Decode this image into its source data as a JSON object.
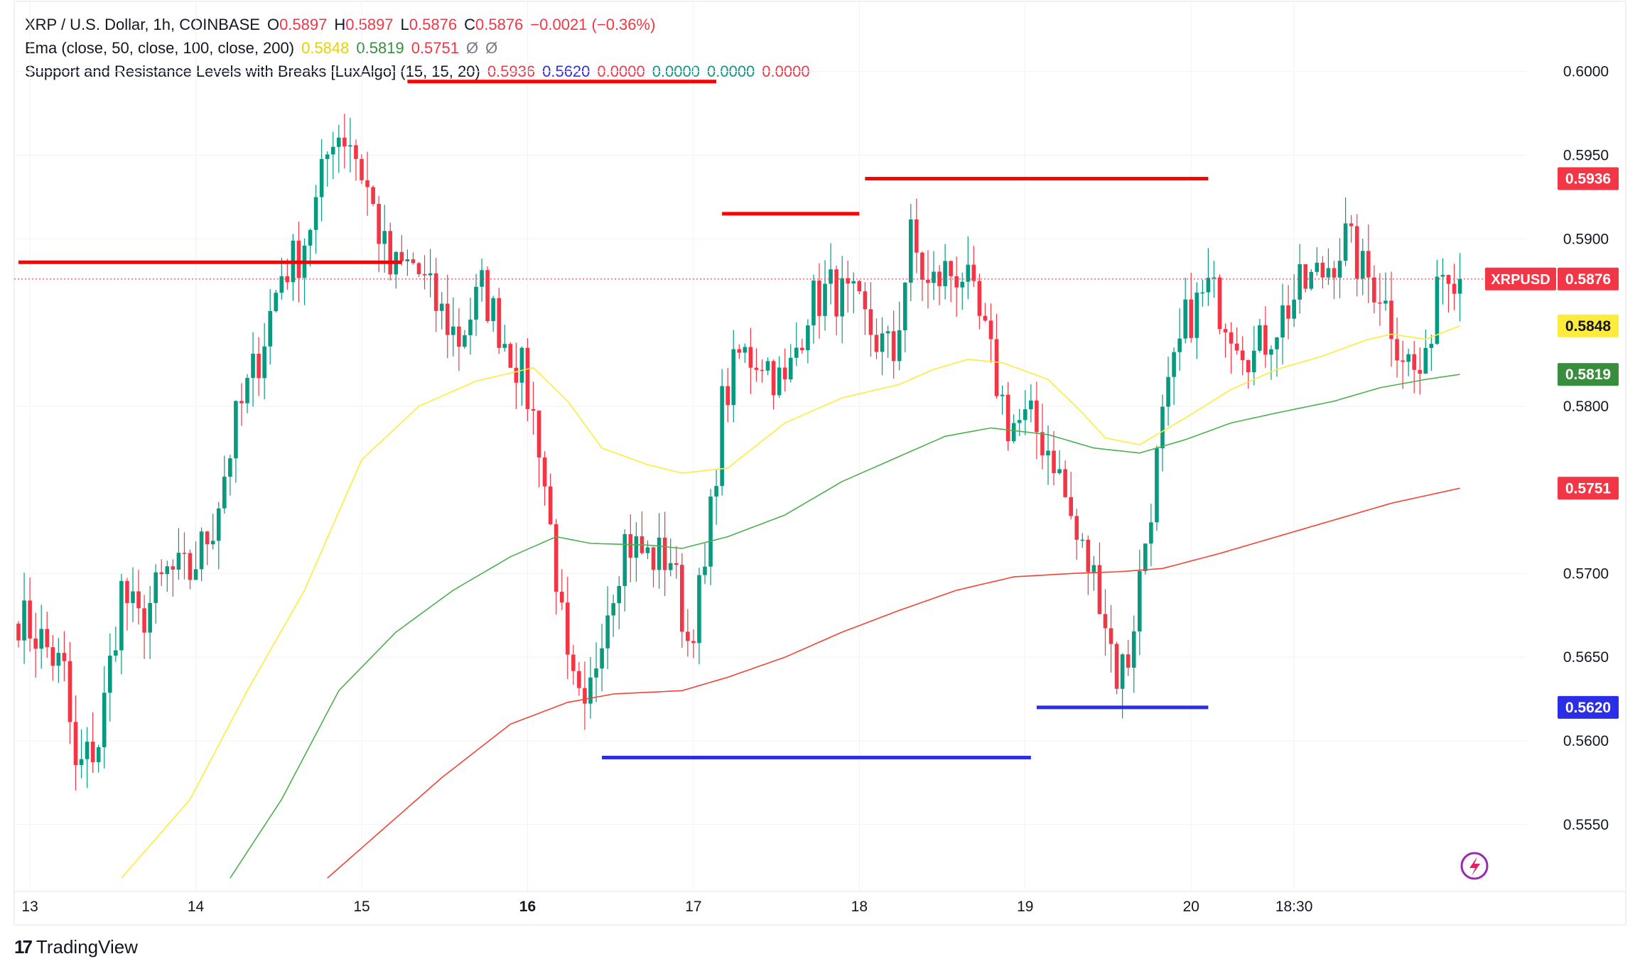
{
  "legend": {
    "symbol": "XRP / U.S. Dollar, 1h, COINBASE",
    "o_label": "O",
    "o_value": "0.5897",
    "h_label": "H",
    "h_value": "0.5897",
    "l_label": "L",
    "l_value": "0.5876",
    "c_label": "C",
    "c_value": "0.5876",
    "change": "−0.0021 (−0.36%)",
    "ema_title": "Ema (close, 50, close, 100, close, 200)",
    "ema_values": [
      "0.5848",
      "0.5819",
      "0.5751"
    ],
    "ema_na": [
      "Ø",
      "Ø"
    ],
    "sr_title": "Support and Resistance Levels with Breaks [LuxAlgo] (15, 15, 20)",
    "sr_values": [
      "0.5936",
      "0.5620",
      "0.0000",
      "0.0000",
      "0.0000",
      "0.0000"
    ]
  },
  "colors": {
    "up": "#089981",
    "down": "#f23645",
    "ema50": "#ffeb3b",
    "ema100": "#4caf50",
    "ema200": "#f44336",
    "resistance": "#ff0000",
    "support": "#2a2ee6",
    "na": "#787b86"
  },
  "brand": {
    "name": "TradingView",
    "logo": "17"
  },
  "chart_data": {
    "type": "candlestick",
    "symbol": "XRPUSD",
    "timeframe": "1h",
    "x_tick_labels": [
      "13",
      "14",
      "15",
      "16",
      "17",
      "18",
      "19",
      "20",
      "18:30"
    ],
    "y_tick_labels": [
      "0.6000",
      "0.5950",
      "0.5900",
      "0.5800",
      "0.5700",
      "0.5650",
      "0.5600",
      "0.5550"
    ],
    "ylim": [
      0.551,
      0.603
    ],
    "last_price": 0.5876,
    "price_labels": [
      {
        "text": "0.5936",
        "value": 0.5936,
        "color": "#f23645",
        "tag": ""
      },
      {
        "text": "0.5876",
        "value": 0.5876,
        "color": "#f23645",
        "tag": "XRPUSD"
      },
      {
        "text": "0.5848",
        "value": 0.5848,
        "color": "#ffeb3b",
        "tag": ""
      },
      {
        "text": "0.5819",
        "value": 0.5819,
        "color": "#388e3c",
        "tag": ""
      },
      {
        "text": "0.5751",
        "value": 0.5751,
        "color": "#f23645",
        "tag": ""
      },
      {
        "text": "0.5620",
        "value": 0.562,
        "color": "#2a2ee6",
        "tag": ""
      }
    ],
    "anchors": [
      [
        0,
        0.5675
      ],
      [
        4,
        0.566
      ],
      [
        8,
        0.564
      ],
      [
        10,
        0.558
      ],
      [
        14,
        0.56
      ],
      [
        18,
        0.569
      ],
      [
        21,
        0.567
      ],
      [
        26,
        0.57
      ],
      [
        30,
        0.57
      ],
      [
        34,
        0.573
      ],
      [
        38,
        0.579
      ],
      [
        42,
        0.583
      ],
      [
        46,
        0.588
      ],
      [
        49,
        0.589
      ],
      [
        52,
        0.592
      ],
      [
        55,
        0.5965
      ],
      [
        58,
        0.596
      ],
      [
        61,
        0.593
      ],
      [
        65,
        0.588
      ],
      [
        69,
        0.5885
      ],
      [
        73,
        0.586
      ],
      [
        77,
        0.584
      ],
      [
        81,
        0.587
      ],
      [
        85,
        0.584
      ],
      [
        88,
        0.582
      ],
      [
        91,
        0.578
      ],
      [
        94,
        0.57
      ],
      [
        96,
        0.564
      ],
      [
        99,
        0.561
      ],
      [
        102,
        0.567
      ],
      [
        106,
        0.572
      ],
      [
        110,
        0.571
      ],
      [
        114,
        0.571
      ],
      [
        117,
        0.566
      ],
      [
        120,
        0.57
      ],
      [
        123,
        0.58
      ],
      [
        126,
        0.583
      ],
      [
        130,
        0.583
      ],
      [
        134,
        0.581
      ],
      [
        138,
        0.586
      ],
      [
        142,
        0.587
      ],
      [
        146,
        0.586
      ],
      [
        150,
        0.584
      ],
      [
        153,
        0.583
      ],
      [
        156,
        0.59
      ],
      [
        159,
        0.587
      ],
      [
        162,
        0.588
      ],
      [
        165,
        0.588
      ],
      [
        169,
        0.584
      ],
      [
        173,
        0.579
      ],
      [
        177,
        0.579
      ],
      [
        181,
        0.577
      ],
      [
        185,
        0.572
      ],
      [
        189,
        0.569
      ],
      [
        192,
        0.564
      ],
      [
        194,
        0.565
      ],
      [
        197,
        0.572
      ],
      [
        200,
        0.579
      ],
      [
        204,
        0.585
      ],
      [
        208,
        0.587
      ],
      [
        212,
        0.585
      ],
      [
        216,
        0.583
      ],
      [
        220,
        0.585
      ],
      [
        224,
        0.587
      ],
      [
        228,
        0.588
      ],
      [
        232,
        0.59
      ],
      [
        235,
        0.588
      ],
      [
        238,
        0.587
      ],
      [
        241,
        0.584
      ],
      [
        244,
        0.582
      ],
      [
        246,
        0.582
      ],
      [
        248,
        0.588
      ],
      [
        250,
        0.5888
      ],
      [
        252,
        0.5876
      ]
    ],
    "x_ticks_index": [
      2,
      31,
      60,
      89,
      118,
      147,
      176,
      205,
      223
    ],
    "ema_series": [
      {
        "name": "EMA 50",
        "color": "#ffeb3b",
        "start": 18,
        "values": [
          [
            18,
            0.5518
          ],
          [
            30,
            0.5565
          ],
          [
            40,
            0.563
          ],
          [
            50,
            0.569
          ],
          [
            60,
            0.5768
          ],
          [
            70,
            0.58
          ],
          [
            80,
            0.5815
          ],
          [
            90,
            0.5823
          ],
          [
            96,
            0.5803
          ],
          [
            102,
            0.5775
          ],
          [
            110,
            0.5765
          ],
          [
            116,
            0.576
          ],
          [
            124,
            0.5763
          ],
          [
            134,
            0.579
          ],
          [
            144,
            0.5805
          ],
          [
            154,
            0.5813
          ],
          [
            160,
            0.5822
          ],
          [
            166,
            0.5828
          ],
          [
            172,
            0.5826
          ],
          [
            180,
            0.5816
          ],
          [
            186,
            0.5796
          ],
          [
            190,
            0.5781
          ],
          [
            196,
            0.5777
          ],
          [
            204,
            0.5793
          ],
          [
            212,
            0.581
          ],
          [
            220,
            0.5822
          ],
          [
            228,
            0.583
          ],
          [
            236,
            0.584
          ],
          [
            240,
            0.5843
          ],
          [
            246,
            0.584
          ],
          [
            252,
            0.5848
          ]
        ]
      },
      {
        "name": "EMA 100",
        "color": "#4caf50",
        "start": 37,
        "values": [
          [
            37,
            0.5518
          ],
          [
            46,
            0.5565
          ],
          [
            56,
            0.563
          ],
          [
            66,
            0.5665
          ],
          [
            76,
            0.569
          ],
          [
            86,
            0.571
          ],
          [
            94,
            0.5722
          ],
          [
            100,
            0.5718
          ],
          [
            110,
            0.5717
          ],
          [
            116,
            0.5715
          ],
          [
            124,
            0.5722
          ],
          [
            134,
            0.5735
          ],
          [
            144,
            0.5755
          ],
          [
            154,
            0.577
          ],
          [
            162,
            0.5782
          ],
          [
            170,
            0.5787
          ],
          [
            180,
            0.5783
          ],
          [
            188,
            0.5775
          ],
          [
            196,
            0.5772
          ],
          [
            204,
            0.578
          ],
          [
            212,
            0.579
          ],
          [
            220,
            0.5796
          ],
          [
            230,
            0.5803
          ],
          [
            238,
            0.5811
          ],
          [
            246,
            0.5816
          ],
          [
            252,
            0.5819
          ]
        ]
      },
      {
        "name": "EMA 200",
        "color": "#f44336",
        "start": 54,
        "values": [
          [
            54,
            0.5518
          ],
          [
            64,
            0.5548
          ],
          [
            74,
            0.5578
          ],
          [
            86,
            0.561
          ],
          [
            96,
            0.5623
          ],
          [
            104,
            0.5628
          ],
          [
            116,
            0.563
          ],
          [
            124,
            0.5638
          ],
          [
            134,
            0.565
          ],
          [
            144,
            0.5665
          ],
          [
            154,
            0.5678
          ],
          [
            164,
            0.569
          ],
          [
            174,
            0.5698
          ],
          [
            184,
            0.57
          ],
          [
            192,
            0.5701
          ],
          [
            200,
            0.5703
          ],
          [
            210,
            0.5712
          ],
          [
            220,
            0.5722
          ],
          [
            230,
            0.5732
          ],
          [
            240,
            0.5742
          ],
          [
            252,
            0.5751
          ]
        ]
      }
    ],
    "resistance_levels": [
      {
        "value": 0.5886,
        "from": 0,
        "to": 67
      },
      {
        "value": 0.5994,
        "from": 68,
        "to": 122
      },
      {
        "value": 0.5915,
        "from": 123,
        "to": 147
      },
      {
        "value": 0.5936,
        "from": 148,
        "to": 208
      }
    ],
    "support_levels": [
      {
        "value": 0.559,
        "from": 102,
        "to": 177
      },
      {
        "value": 0.562,
        "from": 178,
        "to": 208
      }
    ],
    "candle_count": 253
  }
}
